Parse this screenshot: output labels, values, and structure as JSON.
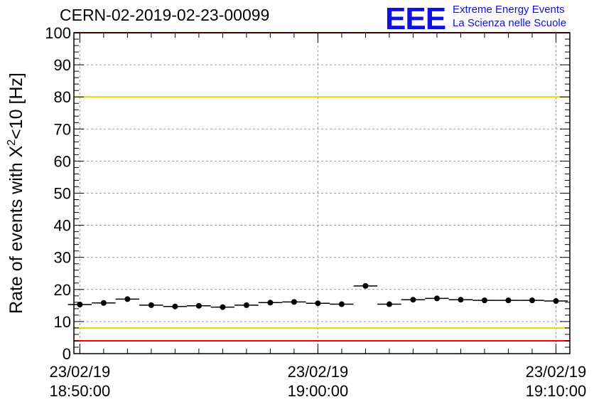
{
  "header": {
    "run_title": "CERN-02-2019-02-23-00099",
    "logo_text": "EEE",
    "logo_line1": "Extreme Energy Events",
    "logo_line2": "La Scienza nelle Scuole"
  },
  "colors": {
    "logo": "#1010e0",
    "red_limit": "#ff0000",
    "yellow_limit": "#f0d000",
    "markers": "#000000",
    "grid": "#999999"
  },
  "chart_data": {
    "type": "scatter",
    "title": "CERN-02-2019-02-23-00099",
    "ylabel": "Rate of events with X²<10 [Hz]",
    "ylim": [
      0,
      100
    ],
    "yticks": [
      0,
      10,
      20,
      30,
      40,
      50,
      60,
      70,
      80,
      90,
      100
    ],
    "xlim": [
      "18:49:45",
      "19:10:35"
    ],
    "xticks": [
      {
        "date": "23/02/19",
        "time": "18:50:00"
      },
      {
        "date": "23/02/19",
        "time": "19:00:00"
      },
      {
        "date": "23/02/19",
        "time": "19:10:00"
      }
    ],
    "grid": true,
    "bin_width_s": 60,
    "x": [
      "18:50:00",
      "18:51:00",
      "18:52:00",
      "18:53:00",
      "18:54:00",
      "18:55:00",
      "18:56:00",
      "18:57:00",
      "18:58:00",
      "18:59:00",
      "19:00:00",
      "19:01:00",
      "19:02:00",
      "19:03:00",
      "19:04:00",
      "19:05:00",
      "19:06:00",
      "19:07:00",
      "19:08:00",
      "19:09:00",
      "19:10:00"
    ],
    "values": [
      15.3,
      15.8,
      17.0,
      15.1,
      14.7,
      14.9,
      14.5,
      15.1,
      15.9,
      16.1,
      15.7,
      15.4,
      21.1,
      15.4,
      16.8,
      17.2,
      16.8,
      16.6,
      16.6,
      16.6,
      16.4
    ],
    "reference_lines": [
      {
        "value": 80,
        "color": "yellow"
      },
      {
        "value": 8,
        "color": "yellow"
      },
      {
        "value": 4,
        "color": "red"
      },
      {
        "value": 100,
        "color": "red"
      }
    ]
  }
}
